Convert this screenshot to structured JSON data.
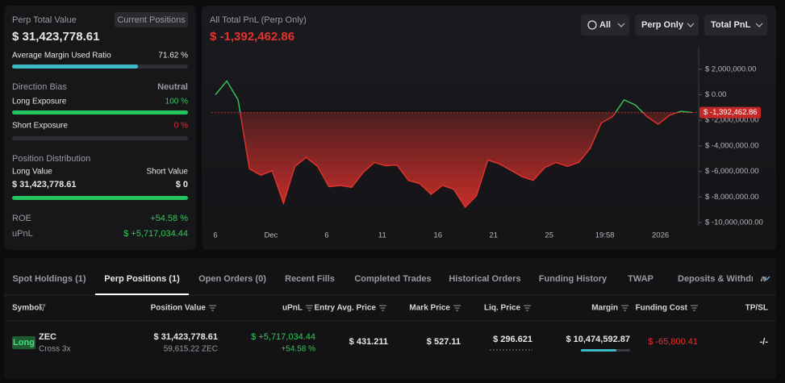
{
  "summary": {
    "title": "Perp Total Value",
    "button": "Current Positions",
    "total_value": "$ 31,423,778.61",
    "margin_ratio": {
      "label": "Average Margin Used Ratio",
      "value": {
        "value": 71.62,
        "label": "71.62 %"
      }
    },
    "direction_bias": {
      "label": "Direction Bias",
      "value": "Neutral"
    },
    "long_exposure": {
      "label": "Long Exposure",
      "value": {
        "value": 100,
        "label": "100 %"
      }
    },
    "short_exposure": {
      "label": "Short Exposure",
      "value": {
        "value": 0,
        "label": "0 %"
      }
    },
    "distribution": {
      "title": "Position Distribution",
      "long_label": "Long Value",
      "short_label": "Short Value",
      "long_value": "$ 31,423,778.61",
      "short_value": "$ 0"
    },
    "roe": {
      "label": "ROE",
      "value": "+54.58 %"
    },
    "upnl": {
      "label": "uPnL",
      "value": "$ +5,717,034.44"
    }
  },
  "chart_data": {
    "type": "line",
    "title": "All Total PnL (Perp Only)",
    "current": {
      "value": -1392462.86,
      "label": "$ -1,392,462.86"
    },
    "controls": [
      "All",
      "Perp Only",
      "Total PnL"
    ],
    "series": [
      {
        "color": "#e5322d",
        "up_color": "#34c759",
        "values": [
          0,
          1080000,
          -400000,
          -5800000,
          -6300000,
          -5950000,
          -8500000,
          -5600000,
          -4900000,
          -5600000,
          -7200000,
          -7100000,
          -7250000,
          -6100000,
          -5300000,
          -5550000,
          -5500000,
          -6700000,
          -6950000,
          -7800000,
          -7100000,
          -7400000,
          -8800000,
          -7900000,
          -5100000,
          -5400000,
          -5900000,
          -6400000,
          -6700000,
          -5700000,
          -5300000,
          -5600000,
          -5300000,
          -4200000,
          -2200000,
          -1700000,
          -400000,
          -800000,
          -1700000,
          -2300000,
          -1600000,
          -1300000,
          -1392462.86
        ]
      }
    ],
    "xlim": [
      0,
      42
    ],
    "xticks": [
      {
        "value": 0,
        "label": "6"
      },
      {
        "value": 4.9,
        "label": "Dec"
      },
      {
        "value": 9.8,
        "label": "6"
      },
      {
        "value": 14.7,
        "label": "11"
      },
      {
        "value": 19.6,
        "label": "16"
      },
      {
        "value": 24.5,
        "label": "21"
      },
      {
        "value": 29.4,
        "label": "25"
      },
      {
        "value": 34.3,
        "label": "19:58"
      },
      {
        "value": 39.2,
        "label": "2026"
      }
    ],
    "ylim": [
      -10000000,
      3000000
    ],
    "yticks": [
      {
        "value": 2000000,
        "label": "$ 2,000,000.00"
      },
      {
        "value": 0,
        "label": "$ 0.00"
      },
      {
        "value": -2000000,
        "label": "$ -2,000,000.00"
      },
      {
        "value": -4000000,
        "label": "$ -4,000,000.00"
      },
      {
        "value": -6000000,
        "label": "$ -6,000,000.00"
      },
      {
        "value": -8000000,
        "label": "$ -8,000,000.00"
      },
      {
        "value": -10000000,
        "label": "$ -10,000,000.00"
      }
    ]
  },
  "tabs": {
    "items": [
      "Spot Holdings (1)",
      "Perp Positions (1)",
      "Open Orders (0)",
      "Recent Fills",
      "Completed Trades",
      "Historical Orders",
      "Funding History",
      "TWAP",
      "Deposits & Withdraw"
    ],
    "active": 1
  },
  "table": {
    "columns": [
      "Symbol",
      "Position Value",
      "uPnL",
      "Entry Avg. Price",
      "Mark Price",
      "Liq. Price",
      "Margin",
      "Funding Cost",
      "TP/SL"
    ],
    "rows": [
      {
        "side": "Long",
        "symbol": "ZEC",
        "mode": "Cross 3x",
        "position_value": "$ 31,423,778.61",
        "size": "59,615.22 ZEC",
        "upnl": "$ +5,717,034.44",
        "upnl_pct": "+54.58 %",
        "entry": "$ 431.211",
        "mark": "$ 527.11",
        "liq": "$ 296.621",
        "margin": "$ 10,474,592.87",
        "funding": "$ -65,800.41",
        "tpsl": "-/-"
      }
    ]
  }
}
